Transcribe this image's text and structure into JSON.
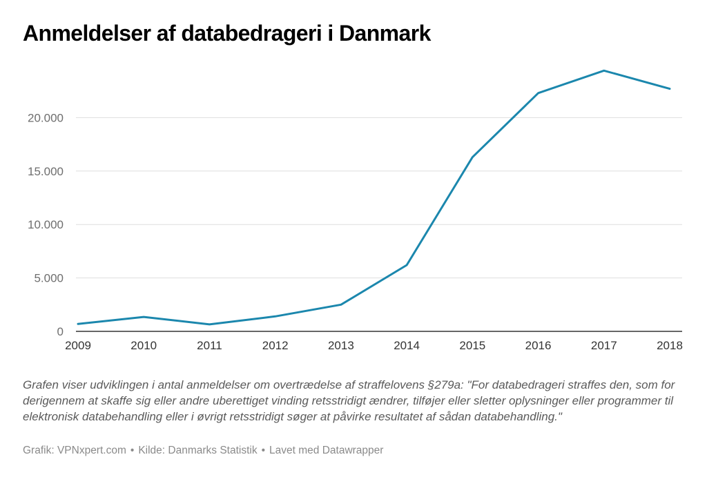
{
  "chart_data": {
    "type": "line",
    "title": "Anmeldelser af databedrageri i Danmark",
    "xlabel": "",
    "ylabel": "",
    "x": [
      2009,
      2010,
      2011,
      2012,
      2013,
      2014,
      2015,
      2016,
      2017,
      2018
    ],
    "series": [
      {
        "values": [
          700,
          1350,
          650,
          1400,
          2500,
          6200,
          16300,
          22300,
          24400,
          22700
        ],
        "color": "#1b87ad"
      }
    ],
    "yticks": [
      0,
      5000,
      10000,
      15000,
      20000
    ],
    "ytick_labels": [
      "0",
      "5.000",
      "10.000",
      "15.000",
      "20.000"
    ],
    "xtick_labels": [
      "2009",
      "2010",
      "2011",
      "2012",
      "2013",
      "2014",
      "2015",
      "2016",
      "2017",
      "2018"
    ],
    "ylim": [
      0,
      25000
    ],
    "grid": true
  },
  "description": "Grafen viser udviklingen i antal anmeldelser om overtrædelse af straffelovens §279a: \"For databedrageri straffes den, som for derigennem at skaffe sig eller andre uberettiget vinding retsstridigt ændrer, tilføjer eller sletter oplysninger eller programmer til elektronisk databehandling eller i øvrigt retsstridigt søger at påvirke resultatet af sådan databehandling.\"",
  "footer": {
    "graphic": "Grafik: VPNxpert.com",
    "source": "Kilde: Danmarks Statistik",
    "made_with": "Lavet med Datawrapper",
    "separator": "•"
  }
}
